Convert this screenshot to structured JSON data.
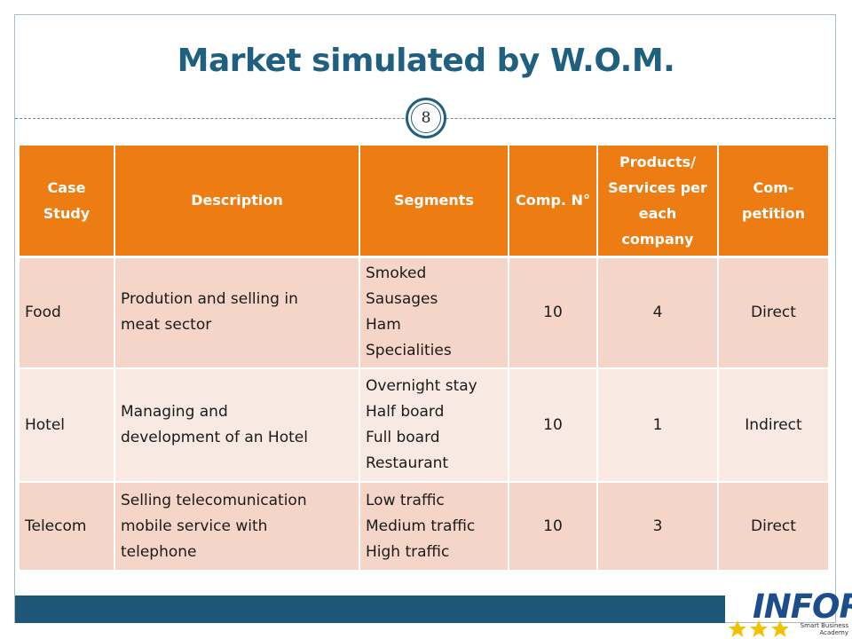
{
  "slide": {
    "title": "Market simulated by W.O.M.",
    "page_number": "8"
  },
  "table": {
    "headers": [
      "Case Study",
      "Description",
      "Segments",
      "Comp. N°",
      "Products/ Services per each company",
      "Com- petition"
    ],
    "rows": [
      {
        "case_study": "Food",
        "description": [
          "Prodution and selling in",
          "meat sector"
        ],
        "segments": [
          "Smoked",
          "Sausages",
          "Ham",
          "Specialities"
        ],
        "comp_n": "10",
        "products": "4",
        "competition": "Direct"
      },
      {
        "case_study": "Hotel",
        "description": [
          "Managing and",
          "development of an Hotel"
        ],
        "segments": [
          "Overnight stay",
          "Half board",
          "Full board",
          "Restaurant"
        ],
        "comp_n": "10",
        "products": "1",
        "competition": "Indirect"
      },
      {
        "case_study": "Telecom",
        "description": [
          "Selling telecomunication",
          "mobile service with",
          "telephone"
        ],
        "segments": [
          "Low traffic",
          "Medium traffic",
          "High traffic"
        ],
        "comp_n": "10",
        "products": "3",
        "competition": "Direct"
      }
    ]
  },
  "logo": {
    "name": "INFOR",
    "tagline_1": "Smart Business",
    "tagline_2": "Academy"
  },
  "colors": {
    "title": "#1f5f7f",
    "header_bg": "#ed7d12",
    "row_dark": "#f5d5c7",
    "row_light": "#f9e9e3",
    "footer_bar": "#1d5677",
    "logo_blue": "#1d4e8c",
    "star_yellow": "#f2c200"
  }
}
